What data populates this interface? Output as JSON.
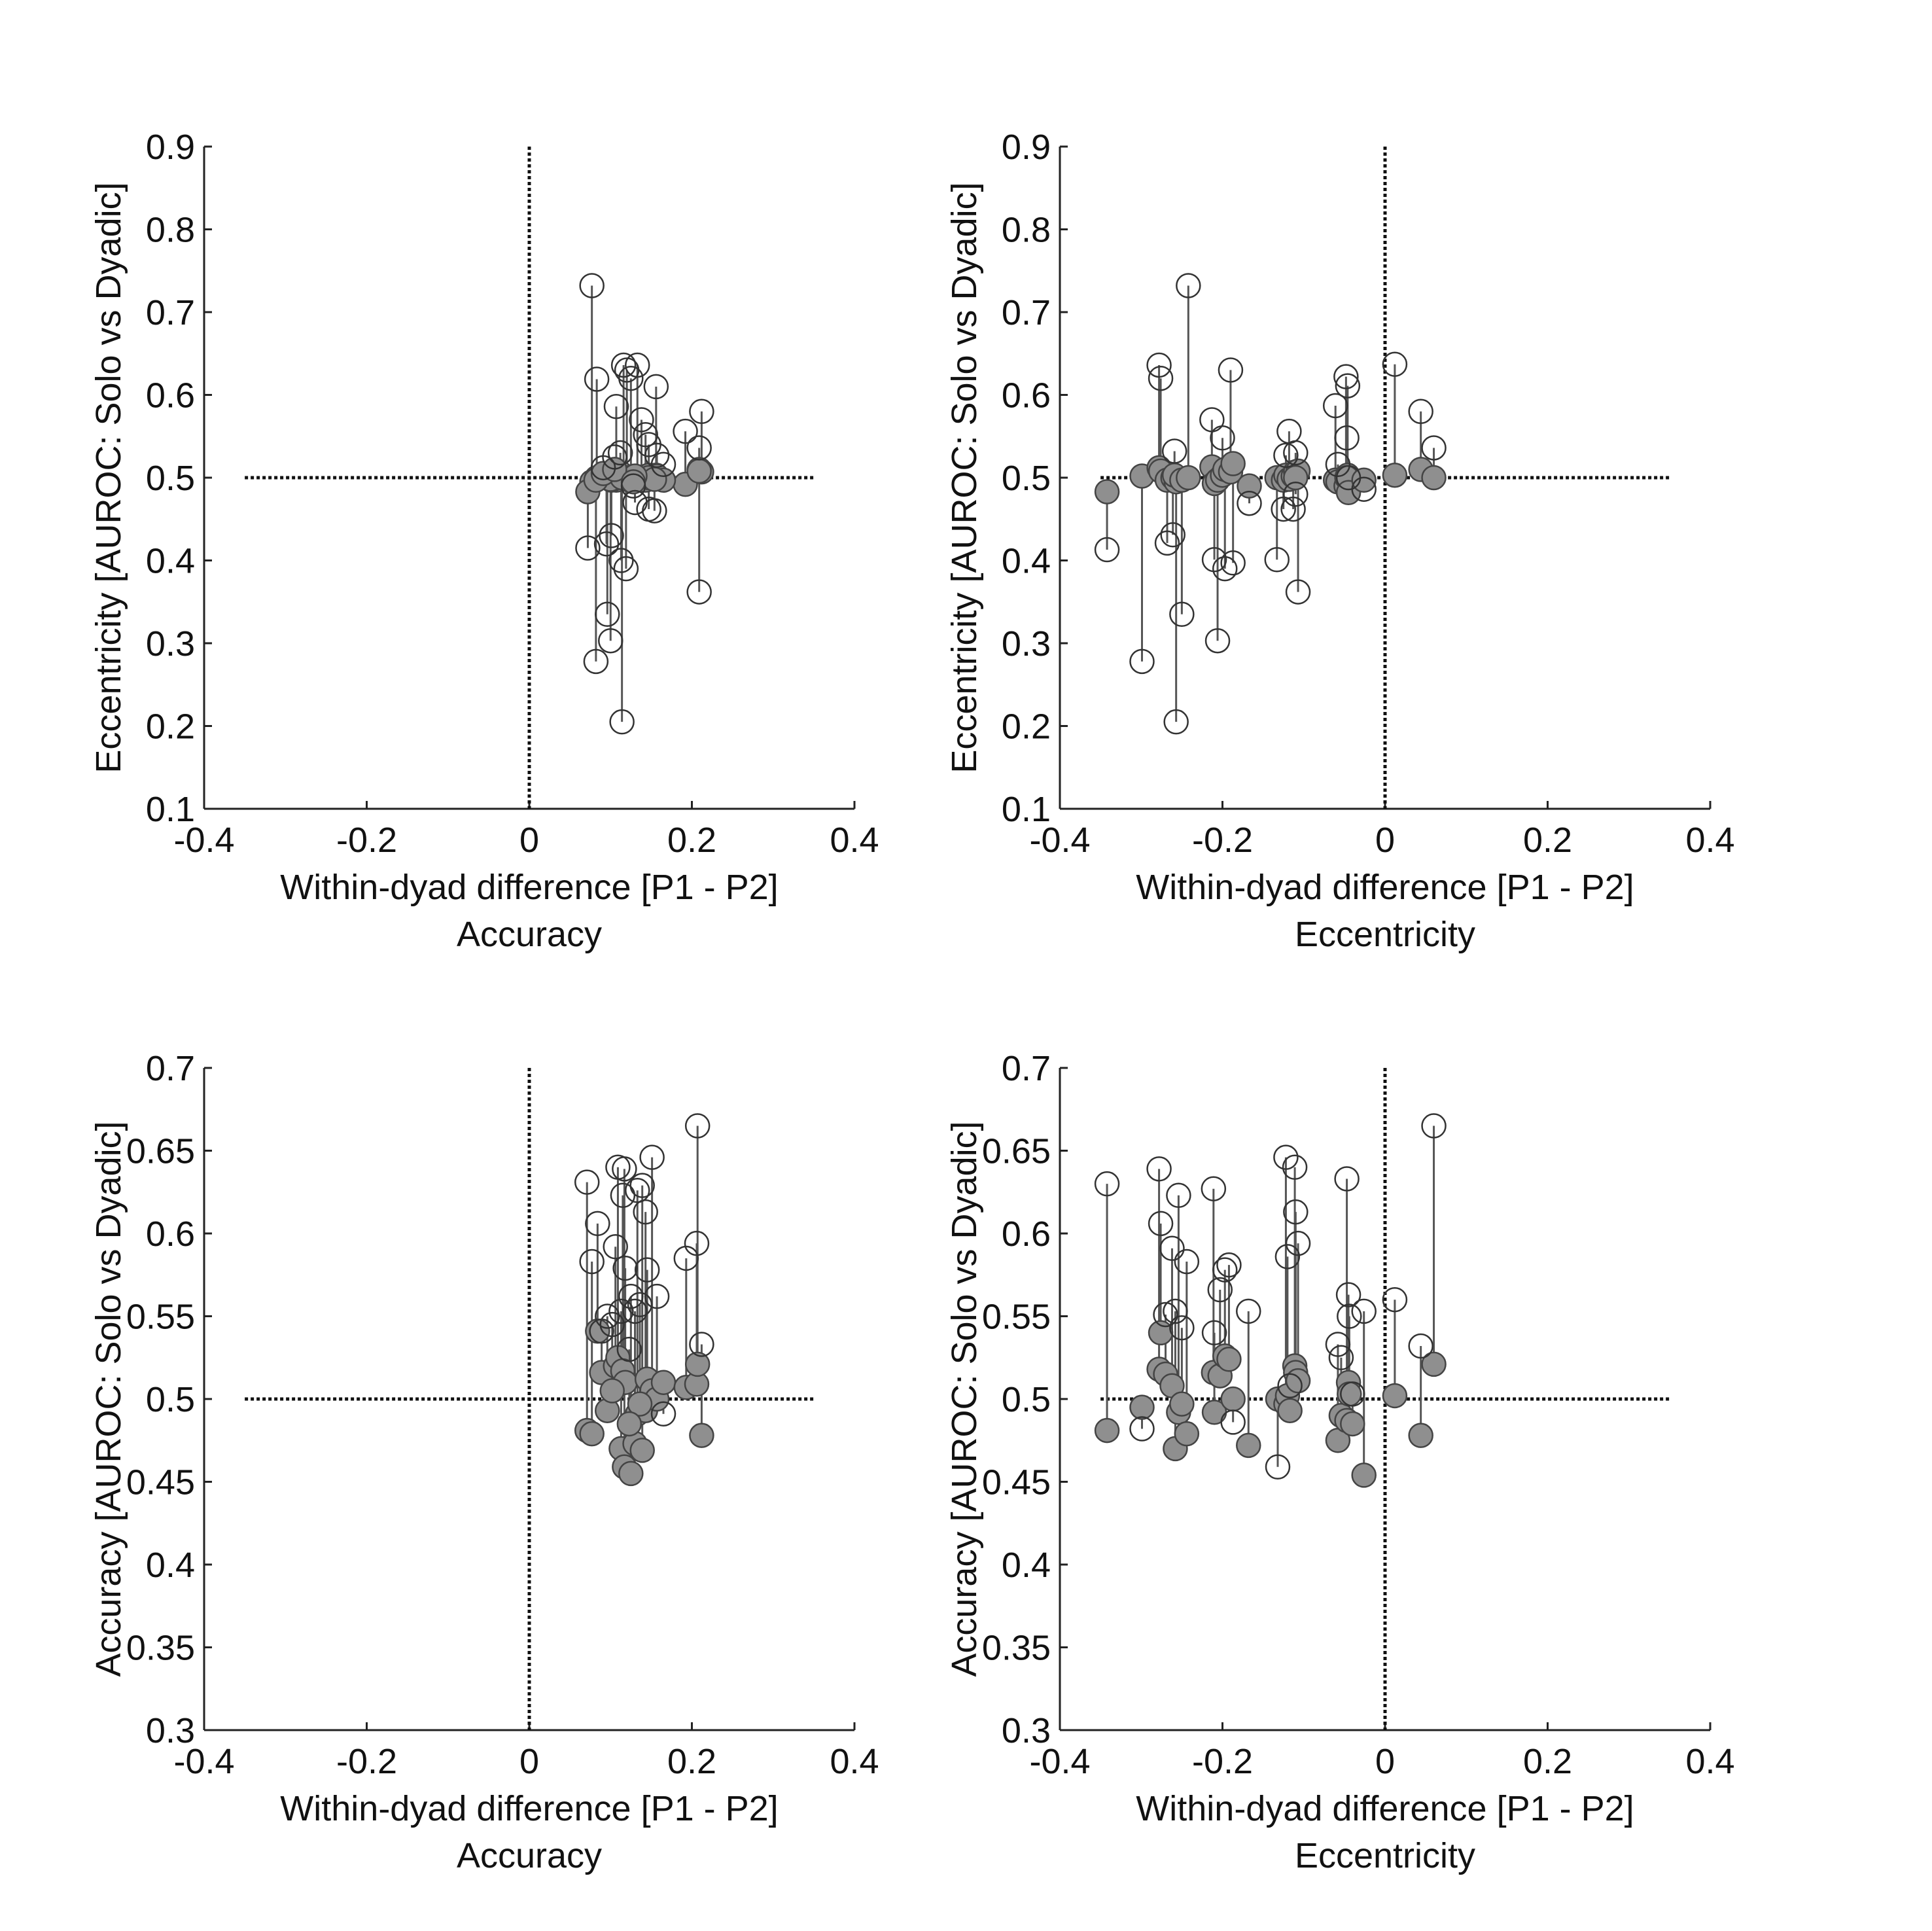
{
  "chart_data": [
    {
      "type": "scatter",
      "xlabel": "Within-dyad difference [P1 - P2]",
      "xsublabel": "Accuracy",
      "ylabel": "Eccentricity [AUROC: Solo vs Dyadic]",
      "xlim": [
        -0.4,
        0.4
      ],
      "ylim": [
        0.1,
        0.9
      ],
      "xticks": [
        "-0.4",
        "-0.2",
        "0",
        "0.2",
        "0.4"
      ],
      "yticks": [
        "0.1",
        "0.2",
        "0.3",
        "0.4",
        "0.5",
        "0.6",
        "0.7",
        "0.8",
        "0.9"
      ],
      "reference_lines": {
        "horizontal": 0.5,
        "vertical": 0,
        "xrange": [
          -0.35,
          0.35
        ]
      },
      "markers": "open circle = solo value, filled circle = dyadic value, joined by a line",
      "pairs": [
        {
          "x": 0.077,
          "open": 0.732,
          "filled": 0.495
        },
        {
          "x": 0.083,
          "open": 0.619,
          "filled": 0.5
        },
        {
          "x": 0.116,
          "open": 0.636,
          "filled": 0.502
        },
        {
          "x": 0.12,
          "open": 0.63,
          "filled": 0.498
        },
        {
          "x": 0.133,
          "open": 0.636,
          "filled": 0.501
        },
        {
          "x": 0.125,
          "open": 0.62,
          "filled": 0.499
        },
        {
          "x": 0.156,
          "open": 0.61,
          "filled": 0.503
        },
        {
          "x": 0.107,
          "open": 0.586,
          "filled": 0.497
        },
        {
          "x": 0.138,
          "open": 0.57,
          "filled": 0.5
        },
        {
          "x": 0.212,
          "open": 0.58,
          "filled": 0.507
        },
        {
          "x": 0.192,
          "open": 0.556,
          "filled": 0.492
        },
        {
          "x": 0.143,
          "open": 0.552,
          "filled": 0.497
        },
        {
          "x": 0.147,
          "open": 0.54,
          "filled": 0.503
        },
        {
          "x": 0.209,
          "open": 0.536,
          "filled": 0.51
        },
        {
          "x": 0.112,
          "open": 0.53,
          "filled": 0.5
        },
        {
          "x": 0.157,
          "open": 0.527,
          "filled": 0.502
        },
        {
          "x": 0.165,
          "open": 0.516,
          "filled": 0.497
        },
        {
          "x": 0.072,
          "open": 0.415,
          "filled": 0.483
        },
        {
          "x": 0.095,
          "open": 0.42,
          "filled": 0.5
        },
        {
          "x": 0.101,
          "open": 0.43,
          "filled": 0.497
        },
        {
          "x": 0.113,
          "open": 0.4,
          "filled": 0.505
        },
        {
          "x": 0.119,
          "open": 0.39,
          "filled": 0.5
        },
        {
          "x": 0.096,
          "open": 0.335,
          "filled": 0.503
        },
        {
          "x": 0.1,
          "open": 0.303,
          "filled": 0.498
        },
        {
          "x": 0.082,
          "open": 0.278,
          "filled": 0.497
        },
        {
          "x": 0.114,
          "open": 0.205,
          "filled": 0.5
        },
        {
          "x": 0.209,
          "open": 0.362,
          "filled": 0.508
        },
        {
          "x": 0.147,
          "open": 0.462,
          "filled": 0.5
        },
        {
          "x": 0.154,
          "open": 0.46,
          "filled": 0.498
        },
        {
          "x": 0.13,
          "open": 0.47,
          "filled": 0.502
        },
        {
          "x": 0.091,
          "open": 0.512,
          "filled": 0.505
        },
        {
          "x": 0.105,
          "open": 0.525,
          "filled": 0.51
        },
        {
          "x": 0.128,
          "open": 0.49,
          "filled": 0.495
        }
      ]
    },
    {
      "type": "scatter",
      "xlabel": "Within-dyad difference [P1 - P2]",
      "xsublabel": "Eccentricity",
      "ylabel": "Eccentricity [AUROC: Solo vs Dyadic]",
      "xlim": [
        -0.4,
        0.4
      ],
      "ylim": [
        0.1,
        0.9
      ],
      "xticks": [
        "-0.4",
        "-0.2",
        "0",
        "0.2",
        "0.4"
      ],
      "yticks": [
        "0.1",
        "0.2",
        "0.3",
        "0.4",
        "0.5",
        "0.6",
        "0.7",
        "0.8",
        "0.9"
      ],
      "reference_lines": {
        "horizontal": 0.5,
        "vertical": 0,
        "xrange": [
          -0.35,
          0.35
        ]
      },
      "markers": "open circle = solo value, filled circle = dyadic value, joined by a line",
      "pairs": [
        {
          "x": -0.342,
          "open": 0.413,
          "filled": 0.483
        },
        {
          "x": -0.299,
          "open": 0.278,
          "filled": 0.502
        },
        {
          "x": -0.278,
          "open": 0.636,
          "filled": 0.512
        },
        {
          "x": -0.276,
          "open": 0.62,
          "filled": 0.508
        },
        {
          "x": -0.268,
          "open": 0.421,
          "filled": 0.497
        },
        {
          "x": -0.261,
          "open": 0.431,
          "filled": 0.5
        },
        {
          "x": -0.257,
          "open": 0.205,
          "filled": 0.495
        },
        {
          "x": -0.259,
          "open": 0.532,
          "filled": 0.503
        },
        {
          "x": -0.25,
          "open": 0.335,
          "filled": 0.497
        },
        {
          "x": -0.242,
          "open": 0.732,
          "filled": 0.5
        },
        {
          "x": -0.213,
          "open": 0.57,
          "filled": 0.513
        },
        {
          "x": -0.21,
          "open": 0.401,
          "filled": 0.493
        },
        {
          "x": -0.206,
          "open": 0.303,
          "filled": 0.497
        },
        {
          "x": -0.2,
          "open": 0.548,
          "filled": 0.503
        },
        {
          "x": -0.197,
          "open": 0.39,
          "filled": 0.51
        },
        {
          "x": -0.19,
          "open": 0.63,
          "filled": 0.507
        },
        {
          "x": -0.187,
          "open": 0.397,
          "filled": 0.517
        },
        {
          "x": -0.167,
          "open": 0.469,
          "filled": 0.49
        },
        {
          "x": -0.133,
          "open": 0.401,
          "filled": 0.5
        },
        {
          "x": -0.125,
          "open": 0.462,
          "filled": 0.497
        },
        {
          "x": -0.122,
          "open": 0.527,
          "filled": 0.503
        },
        {
          "x": -0.118,
          "open": 0.556,
          "filled": 0.498
        },
        {
          "x": -0.113,
          "open": 0.462,
          "filled": 0.502
        },
        {
          "x": -0.11,
          "open": 0.53,
          "filled": 0.507
        },
        {
          "x": -0.107,
          "open": 0.362,
          "filled": 0.508
        },
        {
          "x": -0.11,
          "open": 0.48,
          "filled": 0.5
        },
        {
          "x": -0.061,
          "open": 0.587,
          "filled": 0.497
        },
        {
          "x": -0.058,
          "open": 0.516,
          "filled": 0.495
        },
        {
          "x": -0.048,
          "open": 0.622,
          "filled": 0.49
        },
        {
          "x": -0.046,
          "open": 0.611,
          "filled": 0.503
        },
        {
          "x": -0.047,
          "open": 0.548,
          "filled": 0.5
        },
        {
          "x": -0.045,
          "open": 0.5,
          "filled": 0.482
        },
        {
          "x": -0.026,
          "open": 0.486,
          "filled": 0.497
        },
        {
          "x": 0.012,
          "open": 0.637,
          "filled": 0.503
        },
        {
          "x": 0.044,
          "open": 0.58,
          "filled": 0.51
        },
        {
          "x": 0.06,
          "open": 0.536,
          "filled": 0.5
        }
      ]
    },
    {
      "type": "scatter",
      "xlabel": "Within-dyad difference [P1 - P2]",
      "xsublabel": "Accuracy",
      "ylabel": "Accuracy [AUROC: Solo vs Dyadic]",
      "xlim": [
        -0.4,
        0.4
      ],
      "ylim": [
        0.3,
        0.7
      ],
      "xticks": [
        "-0.4",
        "-0.2",
        "0",
        "0.2",
        "0.4"
      ],
      "yticks": [
        "0.3",
        "0.35",
        "0.4",
        "0.45",
        "0.5",
        "0.55",
        "0.6",
        "0.65",
        "0.7"
      ],
      "reference_lines": {
        "horizontal": 0.5,
        "vertical": 0,
        "xrange": [
          -0.35,
          0.35
        ]
      },
      "markers": "open circle = solo value, filled circle = dyadic value, joined by a line",
      "pairs": [
        {
          "x": 0.071,
          "open": 0.631,
          "filled": 0.481
        },
        {
          "x": 0.077,
          "open": 0.583,
          "filled": 0.479
        },
        {
          "x": 0.084,
          "open": 0.606,
          "filled": 0.541
        },
        {
          "x": 0.089,
          "open": 0.541,
          "filled": 0.516
        },
        {
          "x": 0.096,
          "open": 0.55,
          "filled": 0.493
        },
        {
          "x": 0.106,
          "open": 0.592,
          "filled": 0.52
        },
        {
          "x": 0.109,
          "open": 0.64,
          "filled": 0.525
        },
        {
          "x": 0.113,
          "open": 0.553,
          "filled": 0.47
        },
        {
          "x": 0.117,
          "open": 0.639,
          "filled": 0.459
        },
        {
          "x": 0.115,
          "open": 0.623,
          "filled": 0.517
        },
        {
          "x": 0.118,
          "open": 0.579,
          "filled": 0.51
        },
        {
          "x": 0.125,
          "open": 0.562,
          "filled": 0.455
        },
        {
          "x": 0.13,
          "open": 0.553,
          "filled": 0.473
        },
        {
          "x": 0.133,
          "open": 0.626,
          "filled": 0.491
        },
        {
          "x": 0.139,
          "open": 0.629,
          "filled": 0.469
        },
        {
          "x": 0.143,
          "open": 0.613,
          "filled": 0.493
        },
        {
          "x": 0.145,
          "open": 0.578,
          "filled": 0.512
        },
        {
          "x": 0.151,
          "open": 0.646,
          "filled": 0.505
        },
        {
          "x": 0.157,
          "open": 0.562,
          "filled": 0.5
        },
        {
          "x": 0.165,
          "open": 0.491,
          "filled": 0.51
        },
        {
          "x": 0.193,
          "open": 0.585,
          "filled": 0.507
        },
        {
          "x": 0.206,
          "open": 0.594,
          "filled": 0.509
        },
        {
          "x": 0.207,
          "open": 0.665,
          "filled": 0.521
        },
        {
          "x": 0.212,
          "open": 0.533,
          "filled": 0.478
        },
        {
          "x": 0.102,
          "open": 0.545,
          "filled": 0.505
        },
        {
          "x": 0.136,
          "open": 0.557,
          "filled": 0.497
        },
        {
          "x": 0.123,
          "open": 0.53,
          "filled": 0.485
        }
      ]
    },
    {
      "type": "scatter",
      "xlabel": "Within-dyad difference [P1 - P2]",
      "xsublabel": "Eccentricity",
      "ylabel": "Accuracy [AUROC: Solo vs Dyadic]",
      "xlim": [
        -0.4,
        0.4
      ],
      "ylim": [
        0.3,
        0.7
      ],
      "xticks": [
        "-0.4",
        "-0.2",
        "0",
        "0.2",
        "0.4"
      ],
      "yticks": [
        "0.3",
        "0.35",
        "0.4",
        "0.45",
        "0.5",
        "0.55",
        "0.6",
        "0.65",
        "0.7"
      ],
      "reference_lines": {
        "horizontal": 0.5,
        "vertical": 0,
        "xrange": [
          -0.35,
          0.35
        ]
      },
      "markers": "open circle = solo value, filled circle = dyadic value, joined by a line",
      "pairs": [
        {
          "x": -0.342,
          "open": 0.63,
          "filled": 0.481
        },
        {
          "x": -0.299,
          "open": 0.482,
          "filled": 0.495
        },
        {
          "x": -0.278,
          "open": 0.639,
          "filled": 0.518
        },
        {
          "x": -0.276,
          "open": 0.606,
          "filled": 0.54
        },
        {
          "x": -0.27,
          "open": 0.551,
          "filled": 0.515
        },
        {
          "x": -0.262,
          "open": 0.591,
          "filled": 0.508
        },
        {
          "x": -0.258,
          "open": 0.553,
          "filled": 0.47
        },
        {
          "x": -0.254,
          "open": 0.623,
          "filled": 0.492
        },
        {
          "x": -0.25,
          "open": 0.543,
          "filled": 0.497
        },
        {
          "x": -0.244,
          "open": 0.583,
          "filled": 0.479
        },
        {
          "x": -0.211,
          "open": 0.627,
          "filled": 0.516
        },
        {
          "x": -0.21,
          "open": 0.54,
          "filled": 0.492
        },
        {
          "x": -0.203,
          "open": 0.566,
          "filled": 0.514
        },
        {
          "x": -0.197,
          "open": 0.578,
          "filled": 0.526
        },
        {
          "x": -0.192,
          "open": 0.581,
          "filled": 0.524
        },
        {
          "x": -0.187,
          "open": 0.486,
          "filled": 0.5
        },
        {
          "x": -0.168,
          "open": 0.553,
          "filled": 0.472
        },
        {
          "x": -0.132,
          "open": 0.459,
          "filled": 0.5
        },
        {
          "x": -0.122,
          "open": 0.646,
          "filled": 0.497
        },
        {
          "x": -0.12,
          "open": 0.586,
          "filled": 0.502
        },
        {
          "x": -0.117,
          "open": 0.508,
          "filled": 0.493
        },
        {
          "x": -0.111,
          "open": 0.64,
          "filled": 0.52
        },
        {
          "x": -0.11,
          "open": 0.613,
          "filled": 0.516
        },
        {
          "x": -0.107,
          "open": 0.594,
          "filled": 0.511
        },
        {
          "x": -0.058,
          "open": 0.533,
          "filled": 0.475
        },
        {
          "x": -0.054,
          "open": 0.525,
          "filled": 0.49
        },
        {
          "x": -0.047,
          "open": 0.633,
          "filled": 0.487
        },
        {
          "x": -0.045,
          "open": 0.563,
          "filled": 0.51
        },
        {
          "x": -0.044,
          "open": 0.55,
          "filled": 0.503
        },
        {
          "x": -0.04,
          "open": 0.503,
          "filled": 0.485
        },
        {
          "x": -0.026,
          "open": 0.553,
          "filled": 0.454
        },
        {
          "x": 0.012,
          "open": 0.56,
          "filled": 0.502
        },
        {
          "x": 0.044,
          "open": 0.532,
          "filled": 0.478
        },
        {
          "x": 0.06,
          "open": 0.665,
          "filled": 0.521
        }
      ]
    }
  ]
}
